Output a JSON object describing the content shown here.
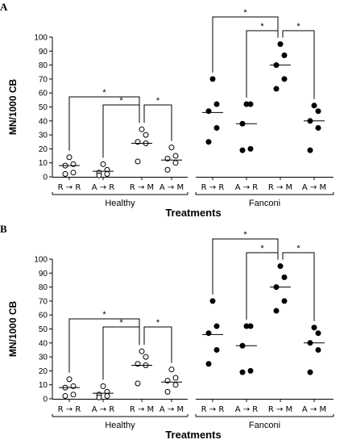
{
  "chart_data": [
    {
      "type": "scatter",
      "panel_label": "A",
      "ylabel": "MN/1000 CB",
      "xlabel": "Treatments",
      "ylim": [
        0,
        100
      ],
      "yticks": [
        0,
        10,
        20,
        30,
        40,
        50,
        60,
        70,
        80,
        90,
        100
      ],
      "groups": [
        "Healthy",
        "Fanconi"
      ],
      "categories": [
        "R → R",
        "A → R",
        "R → M",
        "A → M",
        "R → R",
        "A → R",
        "R → M",
        "A → M"
      ],
      "filled": [
        false,
        false,
        false,
        false,
        true,
        true,
        true,
        true
      ],
      "points": [
        [
          14,
          9,
          8,
          3,
          2
        ],
        [
          9,
          5,
          3,
          2,
          1
        ],
        [
          34,
          30,
          25,
          24,
          11
        ],
        [
          21,
          15,
          13,
          10,
          5
        ],
        [
          70,
          52,
          47,
          35,
          25
        ],
        [
          52,
          52,
          38,
          20,
          19
        ],
        [
          95,
          87,
          80,
          70,
          63
        ],
        [
          51,
          47,
          40,
          35,
          19
        ]
      ],
      "means": [
        8,
        4,
        24,
        12,
        46,
        38,
        80,
        40
      ],
      "significance": [
        {
          "from": 0,
          "to": 2,
          "label": "*"
        },
        {
          "from": 1,
          "to": 2,
          "label": "*"
        },
        {
          "from": 2,
          "to": 3,
          "label": "*"
        },
        {
          "from": 4,
          "to": 6,
          "label": "*"
        },
        {
          "from": 5,
          "to": 6,
          "label": "*"
        },
        {
          "from": 6,
          "to": 7,
          "label": "*"
        }
      ]
    },
    {
      "type": "scatter",
      "panel_label": "B",
      "ylabel": "MN/1000 CB",
      "xlabel": "Treatments",
      "ylim": [
        0,
        100
      ],
      "yticks": [
        0,
        10,
        20,
        30,
        40,
        50,
        60,
        70,
        80,
        90,
        100
      ],
      "groups": [
        "Healthy",
        "Fanconi"
      ],
      "categories": [
        "R → R",
        "A → R",
        "R → M",
        "A → M",
        "R → R",
        "A → R",
        "R → M",
        "A → M"
      ],
      "filled": [
        false,
        false,
        false,
        false,
        true,
        true,
        true,
        true
      ],
      "points": [
        [
          14,
          9,
          8,
          3,
          2
        ],
        [
          9,
          5,
          3,
          2,
          1
        ],
        [
          34,
          30,
          25,
          24,
          11
        ],
        [
          21,
          15,
          13,
          10,
          5
        ],
        [
          70,
          52,
          47,
          35,
          25
        ],
        [
          52,
          52,
          38,
          20,
          19
        ],
        [
          95,
          87,
          80,
          70,
          63
        ],
        [
          51,
          47,
          40,
          35,
          19
        ]
      ],
      "means": [
        8,
        4,
        24,
        12,
        46,
        38,
        80,
        40
      ],
      "significance": [
        {
          "from": 0,
          "to": 2,
          "label": "*"
        },
        {
          "from": 1,
          "to": 2,
          "label": "*"
        },
        {
          "from": 2,
          "to": 3,
          "label": "*"
        },
        {
          "from": 4,
          "to": 6,
          "label": "*"
        },
        {
          "from": 5,
          "to": 6,
          "label": "*"
        },
        {
          "from": 6,
          "to": 7,
          "label": "*"
        }
      ]
    }
  ]
}
